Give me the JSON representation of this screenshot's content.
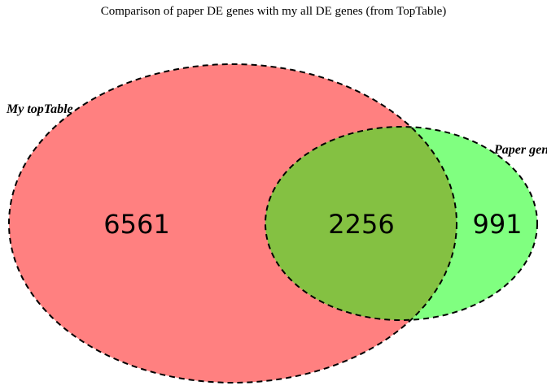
{
  "title": "Comparison of paper DE genes with my all DE genes (from TopTable)",
  "sets": [
    {
      "label": "My topTable",
      "color": "#ff8080",
      "only_count": "6561"
    },
    {
      "label": "Paper genes",
      "color": "#80ff80",
      "only_count": "991"
    }
  ],
  "overlap": {
    "count": "2256",
    "color": "#84c142"
  },
  "outline_color": "#000000"
}
